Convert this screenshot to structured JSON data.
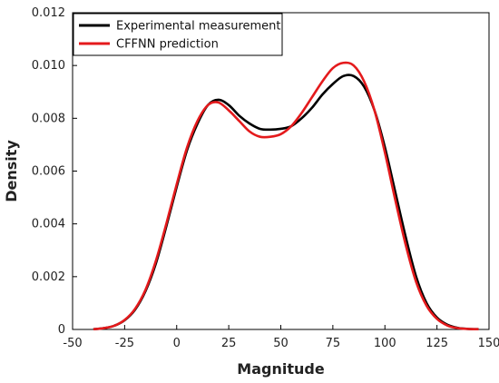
{
  "chart_data": {
    "type": "line",
    "title": "",
    "xlabel": "Magnitude",
    "ylabel": "Density",
    "xlim": [
      -50,
      150
    ],
    "ylim": [
      0,
      0.012
    ],
    "xticks": [
      "-50",
      "-25",
      "0",
      "25",
      "50",
      "75",
      "100",
      "125",
      "150"
    ],
    "yticks": [
      "0",
      "0.002",
      "0.004",
      "0.006",
      "0.008",
      "0.010",
      "0.012"
    ],
    "grid": false,
    "legend_position": "top-left",
    "series": [
      {
        "name": "Experimental measurement",
        "color": "#000000",
        "x": [
          -40,
          -35,
          -30,
          -25,
          -20,
          -15,
          -10,
          -5,
          0,
          5,
          10,
          15,
          20,
          25,
          30,
          35,
          40,
          45,
          50,
          55,
          60,
          65,
          70,
          75,
          80,
          85,
          90,
          95,
          100,
          105,
          110,
          115,
          120,
          125,
          130,
          135,
          140,
          145
        ],
        "y": [
          1e-05,
          5e-05,
          0.00014,
          0.00035,
          0.00075,
          0.00145,
          0.0025,
          0.0039,
          0.0054,
          0.0068,
          0.0078,
          0.0085,
          0.0087,
          0.0085,
          0.0081,
          0.0078,
          0.0076,
          0.00757,
          0.0076,
          0.0077,
          0.008,
          0.0084,
          0.0089,
          0.0093,
          0.0096,
          0.0096,
          0.0092,
          0.0083,
          0.0069,
          0.0052,
          0.0035,
          0.002,
          0.001,
          0.00045,
          0.00018,
          6e-05,
          2e-05,
          1e-05
        ]
      },
      {
        "name": "CFFNN prediction",
        "color": "#e41a1c",
        "x": [
          -40,
          -35,
          -30,
          -25,
          -20,
          -15,
          -10,
          -5,
          0,
          5,
          10,
          15,
          20,
          25,
          30,
          35,
          40,
          45,
          50,
          55,
          60,
          65,
          70,
          75,
          80,
          85,
          90,
          95,
          100,
          105,
          110,
          115,
          120,
          125,
          130,
          135,
          140,
          145
        ],
        "y": [
          1e-05,
          5e-05,
          0.00014,
          0.00036,
          0.00078,
          0.0015,
          0.0026,
          0.004,
          0.0055,
          0.0069,
          0.0079,
          0.0085,
          0.0086,
          0.0083,
          0.0079,
          0.0075,
          0.0073,
          0.0073,
          0.0074,
          0.0077,
          0.0082,
          0.0088,
          0.0094,
          0.0099,
          0.0101,
          0.01,
          0.0094,
          0.0083,
          0.0067,
          0.0049,
          0.0032,
          0.0018,
          0.0009,
          0.0004,
          0.00015,
          5e-05,
          2e-05,
          1e-05
        ]
      }
    ]
  }
}
